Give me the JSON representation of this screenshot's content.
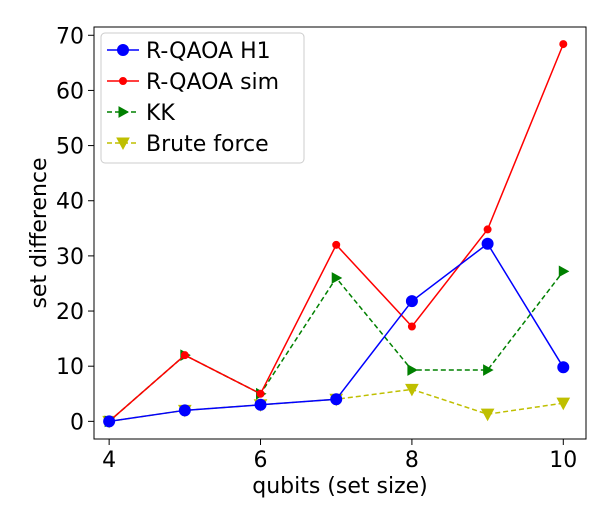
{
  "chart_data": {
    "type": "line",
    "xlabel": "qubits (set size)",
    "ylabel": "set difference",
    "xlim": [
      3.8,
      10.3
    ],
    "ylim": [
      -3.2,
      71.5
    ],
    "xticks": [
      4,
      6,
      8,
      10
    ],
    "yticks": [
      0,
      10,
      20,
      30,
      40,
      50,
      60,
      70
    ],
    "grid": false,
    "legend_position": "top-left",
    "series": [
      {
        "name": "R-QAOA H1",
        "color": "#0000ff",
        "linestyle": "solid",
        "marker": "circle",
        "x": [
          4,
          5,
          6,
          7,
          8,
          9,
          10
        ],
        "y": [
          0,
          2,
          3,
          4,
          21.8,
          32.2,
          9.8
        ]
      },
      {
        "name": "R-QAOA sim",
        "color": "#ff0000",
        "linestyle": "solid",
        "marker": "small-circle",
        "x": [
          4,
          5,
          6,
          7,
          8,
          9,
          10
        ],
        "y": [
          0,
          12,
          5,
          32,
          17.2,
          34.8,
          68.4
        ]
      },
      {
        "name": "KK",
        "color": "#008000",
        "linestyle": "dashed",
        "marker": "triangle-right",
        "x": [
          4,
          5,
          6,
          7,
          8,
          9,
          10
        ],
        "y": [
          0,
          12,
          5,
          26,
          9.3,
          9.3,
          27.2
        ]
      },
      {
        "name": "Brute force",
        "color": "#bfbf00",
        "linestyle": "dashed",
        "marker": "triangle-down",
        "x": [
          4,
          5,
          6,
          7,
          8,
          9,
          10
        ],
        "y": [
          0,
          2,
          3,
          4,
          5.8,
          1.3,
          3.3
        ]
      }
    ]
  }
}
